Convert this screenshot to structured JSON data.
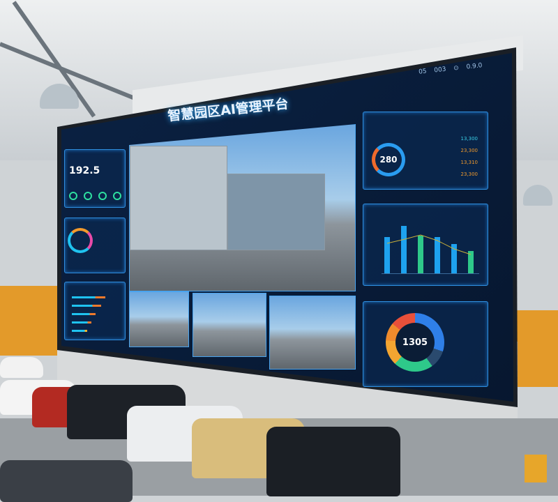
{
  "screen": {
    "title": "智慧园区AI管理平台",
    "status_readout": "05 003 ⊙ 0.9.0",
    "left": {
      "metric_value": "192.5"
    },
    "right": {
      "gauge_value": "280",
      "list_values": [
        "13,300",
        "23,300",
        "13,310",
        "23,300"
      ],
      "bar_chart": {
        "values": [
          65,
          85,
          68,
          65,
          52,
          40
        ],
        "line": [
          55,
          62,
          70,
          60,
          45,
          35
        ]
      },
      "donut_value": "1305",
      "donut_colors": [
        "#2f7fe8",
        "#2a4a6e",
        "#2ec98a",
        "#f3a531",
        "#ef8a2c",
        "#e8503a"
      ]
    }
  }
}
